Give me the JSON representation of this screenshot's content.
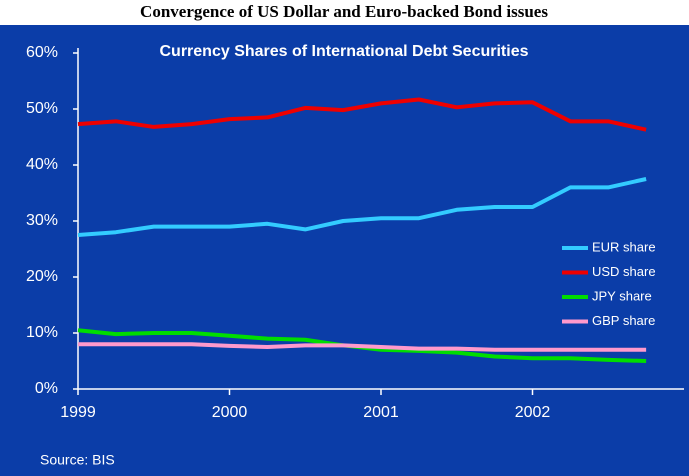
{
  "chart_data": {
    "type": "line",
    "title": "Convergence of US Dollar and Euro-backed Bond issues",
    "subtitle": "Currency Shares of International Debt Securities",
    "source": "Source: BIS",
    "x": [
      1999,
      1999.25,
      1999.5,
      1999.75,
      2000,
      2000.25,
      2000.5,
      2000.75,
      2001,
      2001.25,
      2001.5,
      2001.75,
      2002,
      2002.25,
      2002.5,
      2002.75
    ],
    "series": [
      {
        "name": "EUR share",
        "color": "#33ccff",
        "values": [
          27.5,
          28,
          29,
          29,
          29,
          29.5,
          28.5,
          30,
          30.5,
          30.5,
          32,
          32.5,
          32.5,
          36,
          36,
          37.5
        ]
      },
      {
        "name": "USD share",
        "color": "#ee0000",
        "values": [
          47.3,
          47.8,
          46.8,
          47.3,
          48.2,
          48.5,
          50.2,
          49.8,
          51,
          51.7,
          50.3,
          51,
          51.2,
          47.8,
          47.8,
          46.3
        ]
      },
      {
        "name": "JPY share",
        "color": "#00dd00",
        "values": [
          10.5,
          9.8,
          10,
          10,
          9.5,
          9,
          8.8,
          7.8,
          7,
          6.8,
          6.5,
          5.8,
          5.5,
          5.5,
          5.2,
          5
        ]
      },
      {
        "name": "GBP share",
        "color": "#ff99cc",
        "values": [
          8,
          8,
          8,
          8,
          7.7,
          7.5,
          7.8,
          7.8,
          7.5,
          7.2,
          7.2,
          7,
          7,
          7,
          7,
          7
        ]
      }
    ],
    "xlim": [
      1999,
      2003
    ],
    "xticks": [
      1999,
      2000,
      2001,
      2002
    ],
    "ylim": [
      0,
      60
    ],
    "yticks": [
      {
        "value": 0,
        "label": "0%"
      },
      {
        "value": 10,
        "label": "10%"
      },
      {
        "value": 20,
        "label": "20%"
      },
      {
        "value": 30,
        "label": "30%"
      },
      {
        "value": 40,
        "label": "40%"
      },
      {
        "value": 50,
        "label": "50%"
      },
      {
        "value": 60,
        "label": "60%"
      }
    ],
    "legend": "right"
  }
}
